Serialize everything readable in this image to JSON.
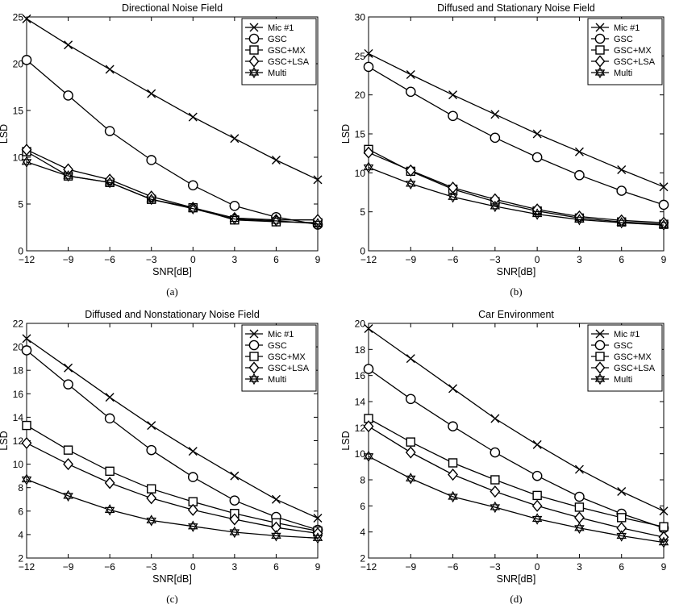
{
  "chart_data": [
    {
      "type": "line",
      "title": "Directional Noise Field",
      "xlabel": "SNR[dB]",
      "ylabel": "LSD",
      "caption": "(a)",
      "x": [
        -12,
        -9,
        -6,
        -3,
        0,
        3,
        6,
        9
      ],
      "xticks": [
        -12,
        -9,
        -6,
        -3,
        0,
        3,
        6,
        9
      ],
      "xtick_labels": [
        "−12",
        "−9",
        "−6",
        "−3",
        "0",
        "3",
        "6",
        "9"
      ],
      "ylim": [
        0,
        25
      ],
      "yticks": [
        0,
        5,
        10,
        15,
        20,
        25
      ],
      "legend_position": "top-right",
      "grid": false,
      "series": [
        {
          "name": "Mic #1",
          "marker": "x",
          "values": [
            24.8,
            22.0,
            19.4,
            16.8,
            14.3,
            12.0,
            9.7,
            7.6
          ]
        },
        {
          "name": "GSC",
          "marker": "circle",
          "values": [
            20.4,
            16.6,
            12.8,
            9.7,
            7.0,
            4.8,
            3.6,
            2.8
          ]
        },
        {
          "name": "GSC+MX",
          "marker": "square",
          "values": [
            10.6,
            8.0,
            7.3,
            5.5,
            4.6,
            3.3,
            3.1,
            3.0
          ]
        },
        {
          "name": "GSC+LSA",
          "marker": "diamond",
          "values": [
            10.8,
            8.7,
            7.6,
            5.8,
            4.6,
            3.5,
            3.3,
            3.3
          ]
        },
        {
          "name": "Multi",
          "marker": "star",
          "values": [
            9.5,
            8.0,
            7.3,
            5.5,
            4.5,
            3.4,
            3.2,
            2.9
          ]
        }
      ]
    },
    {
      "type": "line",
      "title": "Diffused and Stationary Noise Field",
      "xlabel": "SNR[dB]",
      "ylabel": "LSD",
      "caption": "(b)",
      "x": [
        -12,
        -9,
        -6,
        -3,
        0,
        3,
        6,
        9
      ],
      "xticks": [
        -12,
        -9,
        -6,
        -3,
        0,
        3,
        6,
        9
      ],
      "xtick_labels": [
        "−12",
        "−9",
        "−6",
        "−3",
        "0",
        "3",
        "6",
        "9"
      ],
      "ylim": [
        0,
        30
      ],
      "yticks": [
        0,
        5,
        10,
        15,
        20,
        25,
        30
      ],
      "legend_position": "top-right",
      "grid": false,
      "series": [
        {
          "name": "Mic #1",
          "marker": "x",
          "values": [
            25.3,
            22.6,
            20.0,
            17.5,
            15.0,
            12.7,
            10.4,
            8.2
          ]
        },
        {
          "name": "GSC",
          "marker": "circle",
          "values": [
            23.6,
            20.4,
            17.3,
            14.5,
            12.0,
            9.7,
            7.7,
            5.9
          ]
        },
        {
          "name": "GSC+MX",
          "marker": "square",
          "values": [
            13.0,
            10.2,
            7.9,
            6.3,
            5.1,
            4.2,
            3.7,
            3.4
          ]
        },
        {
          "name": "GSC+LSA",
          "marker": "diamond",
          "values": [
            12.6,
            10.3,
            8.1,
            6.6,
            5.3,
            4.4,
            3.9,
            3.6
          ]
        },
        {
          "name": "Multi",
          "marker": "star",
          "values": [
            10.7,
            8.6,
            6.9,
            5.7,
            4.7,
            4.0,
            3.6,
            3.3
          ]
        }
      ]
    },
    {
      "type": "line",
      "title": "Diffused and Nonstationary Noise Field",
      "xlabel": "SNR[dB]",
      "ylabel": "LSD",
      "caption": "(c)",
      "x": [
        -12,
        -9,
        -6,
        -3,
        0,
        3,
        6,
        9
      ],
      "xticks": [
        -12,
        -9,
        -6,
        -3,
        0,
        3,
        6,
        9
      ],
      "xtick_labels": [
        "−12",
        "−9",
        "−6",
        "−3",
        "0",
        "3",
        "6",
        "9"
      ],
      "ylim": [
        2,
        22
      ],
      "yticks": [
        2,
        4,
        6,
        8,
        10,
        12,
        14,
        16,
        18,
        20,
        22
      ],
      "legend_position": "top-right",
      "grid": false,
      "series": [
        {
          "name": "Mic #1",
          "marker": "x",
          "values": [
            20.7,
            18.2,
            15.7,
            13.3,
            11.1,
            9.0,
            7.0,
            5.4
          ]
        },
        {
          "name": "GSC",
          "marker": "circle",
          "values": [
            19.7,
            16.8,
            13.9,
            11.2,
            8.9,
            6.9,
            5.5,
            4.4
          ]
        },
        {
          "name": "GSC+MX",
          "marker": "square",
          "values": [
            13.3,
            11.2,
            9.4,
            7.9,
            6.8,
            5.8,
            5.0,
            4.3
          ]
        },
        {
          "name": "GSC+LSA",
          "marker": "diamond",
          "values": [
            11.8,
            10.0,
            8.4,
            7.1,
            6.1,
            5.3,
            4.6,
            4.1
          ]
        },
        {
          "name": "Multi",
          "marker": "star",
          "values": [
            8.7,
            7.3,
            6.1,
            5.2,
            4.7,
            4.2,
            3.9,
            3.7
          ]
        }
      ]
    },
    {
      "type": "line",
      "title": "Car Environment",
      "xlabel": "SNR[dB]",
      "ylabel": "LSD",
      "caption": "(d)",
      "x": [
        -12,
        -9,
        -6,
        -3,
        0,
        3,
        6,
        9
      ],
      "xticks": [
        -12,
        -9,
        -6,
        -3,
        0,
        3,
        6,
        9
      ],
      "xtick_labels": [
        "−12",
        "−9",
        "−6",
        "−3",
        "0",
        "3",
        "6",
        "9"
      ],
      "ylim": [
        2,
        20
      ],
      "yticks": [
        2,
        4,
        6,
        8,
        10,
        12,
        14,
        16,
        18,
        20
      ],
      "legend_position": "top-right",
      "grid": false,
      "series": [
        {
          "name": "Mic #1",
          "marker": "x",
          "values": [
            19.6,
            17.3,
            15.0,
            12.7,
            10.7,
            8.8,
            7.1,
            5.6
          ]
        },
        {
          "name": "GSC",
          "marker": "circle",
          "values": [
            16.5,
            14.2,
            12.1,
            10.1,
            8.3,
            6.7,
            5.4,
            4.3
          ]
        },
        {
          "name": "GSC+MX",
          "marker": "square",
          "values": [
            12.7,
            10.9,
            9.3,
            8.0,
            6.8,
            5.9,
            5.1,
            4.4
          ]
        },
        {
          "name": "GSC+LSA",
          "marker": "diamond",
          "values": [
            12.1,
            10.1,
            8.4,
            7.1,
            6.0,
            5.1,
            4.3,
            3.6
          ]
        },
        {
          "name": "Multi",
          "marker": "star",
          "values": [
            9.8,
            8.1,
            6.7,
            5.9,
            5.0,
            4.3,
            3.7,
            3.2
          ]
        }
      ]
    }
  ]
}
